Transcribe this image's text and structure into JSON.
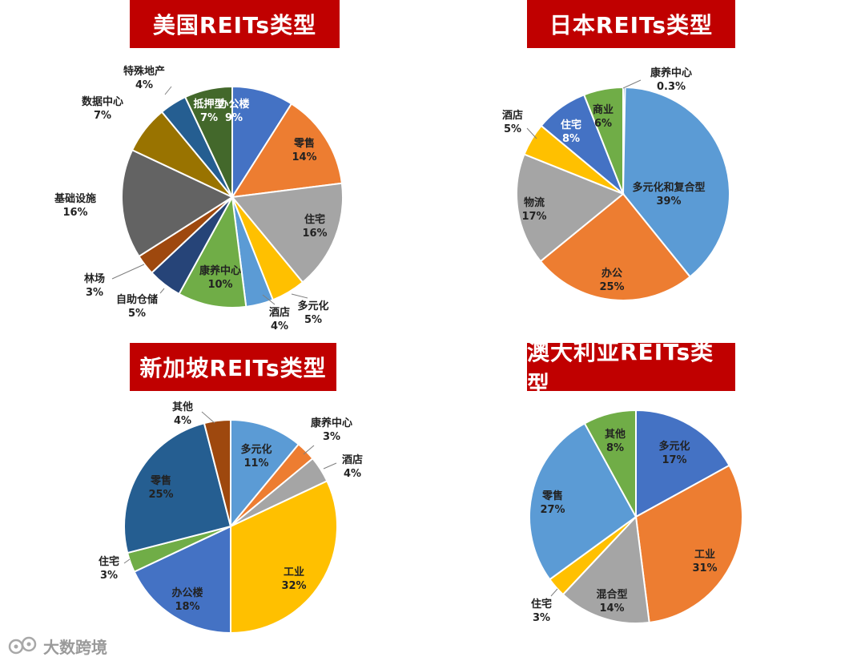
{
  "chart_data": [
    {
      "type": "pie",
      "title": "美国REITs类型",
      "slices": [
        {
          "label": "办公楼",
          "value": 9,
          "pct": "9%",
          "color": "#4472c4"
        },
        {
          "label": "零售",
          "value": 14,
          "pct": "14%",
          "color": "#ed7d31"
        },
        {
          "label": "住宅",
          "value": 16,
          "pct": "16%",
          "color": "#a5a5a5"
        },
        {
          "label": "多元化",
          "value": 5,
          "pct": "5%",
          "color": "#ffc000"
        },
        {
          "label": "酒店",
          "value": 4,
          "pct": "4%",
          "color": "#5b9bd5"
        },
        {
          "label": "康养中心",
          "value": 10,
          "pct": "10%",
          "color": "#70ad47"
        },
        {
          "label": "自助仓储",
          "value": 5,
          "pct": "5%",
          "color": "#264478"
        },
        {
          "label": "林场",
          "value": 3,
          "pct": "3%",
          "color": "#9e480e"
        },
        {
          "label": "基础设施",
          "value": 16,
          "pct": "16%",
          "color": "#636363"
        },
        {
          "label": "数据中心",
          "value": 7,
          "pct": "7%",
          "color": "#997300"
        },
        {
          "label": "特殊地产",
          "value": 4,
          "pct": "4%",
          "color": "#255e91"
        },
        {
          "label": "抵押型",
          "value": 7,
          "pct": "7%",
          "color": "#43682b"
        }
      ]
    },
    {
      "type": "pie",
      "title": "日本REITs类型",
      "slices": [
        {
          "label": "康养中心",
          "value": 0.3,
          "pct": "0.3%",
          "color": "#4472c4"
        },
        {
          "label": "多元化和复合型",
          "value": 39,
          "pct": "39%",
          "color": "#5b9bd5"
        },
        {
          "label": "办公",
          "value": 25,
          "pct": "25%",
          "color": "#ed7d31"
        },
        {
          "label": "物流",
          "value": 17,
          "pct": "17%",
          "color": "#a5a5a5"
        },
        {
          "label": "酒店",
          "value": 5,
          "pct": "5%",
          "color": "#ffc000"
        },
        {
          "label": "住宅",
          "value": 8,
          "pct": "8%",
          "color": "#4472c4"
        },
        {
          "label": "商业",
          "value": 6,
          "pct": "6%",
          "color": "#70ad47"
        }
      ]
    },
    {
      "type": "pie",
      "title": "新加坡REITs类型",
      "slices": [
        {
          "label": "多元化",
          "value": 11,
          "pct": "11%",
          "color": "#5b9bd5"
        },
        {
          "label": "康养中心",
          "value": 3,
          "pct": "3%",
          "color": "#ed7d31"
        },
        {
          "label": "酒店",
          "value": 4,
          "pct": "4%",
          "color": "#a5a5a5"
        },
        {
          "label": "工业",
          "value": 32,
          "pct": "32%",
          "color": "#ffc000"
        },
        {
          "label": "办公楼",
          "value": 18,
          "pct": "18%",
          "color": "#4472c4"
        },
        {
          "label": "住宅",
          "value": 3,
          "pct": "3%",
          "color": "#70ad47"
        },
        {
          "label": "零售",
          "value": 25,
          "pct": "25%",
          "color": "#255e91"
        },
        {
          "label": "其他",
          "value": 4,
          "pct": "4%",
          "color": "#9e480e"
        }
      ]
    },
    {
      "type": "pie",
      "title": "澳大利亚REITs类型",
      "slices": [
        {
          "label": "多元化",
          "value": 17,
          "pct": "17%",
          "color": "#4472c4"
        },
        {
          "label": "工业",
          "value": 31,
          "pct": "31%",
          "color": "#ed7d31"
        },
        {
          "label": "混合型",
          "value": 14,
          "pct": "14%",
          "color": "#a5a5a5"
        },
        {
          "label": "住宅",
          "value": 3,
          "pct": "3%",
          "color": "#ffc000"
        },
        {
          "label": "零售",
          "value": 27,
          "pct": "27%",
          "color": "#5b9bd5"
        },
        {
          "label": "其他",
          "value": 8,
          "pct": "8%",
          "color": "#70ad47"
        }
      ]
    }
  ],
  "watermark": {
    "text": "大数跨境"
  }
}
